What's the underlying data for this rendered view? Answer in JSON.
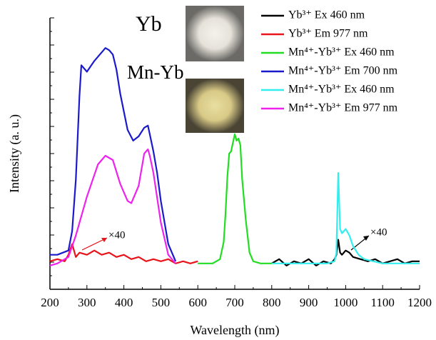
{
  "chart_data": {
    "type": "line",
    "xlabel": "Wavelength (nm)",
    "ylabel": "Intensity (a. u.)",
    "xlim": [
      200,
      1200
    ],
    "xticks": [
      200,
      300,
      400,
      500,
      600,
      700,
      800,
      900,
      1000,
      1100,
      1200
    ],
    "ylim": [
      -0.12,
      1.14
    ],
    "annotations": [
      "Yb",
      "Mn-Yb",
      "×40",
      "×40"
    ],
    "series": [
      {
        "name": "Yb³⁺ Ex 460 nm",
        "color": "#000000",
        "x": [
          800,
          820,
          840,
          860,
          880,
          900,
          920,
          940,
          960,
          970,
          975,
          980,
          985,
          990,
          1000,
          1010,
          1020,
          1040,
          1060,
          1080,
          1100,
          1120,
          1140,
          1160,
          1180,
          1200
        ],
        "values": [
          0.0,
          0.02,
          -0.01,
          0.01,
          0.0,
          0.02,
          -0.01,
          0.01,
          0.0,
          0.02,
          0.04,
          0.11,
          0.05,
          0.04,
          0.06,
          0.05,
          0.03,
          0.02,
          0.01,
          0.02,
          0.0,
          0.01,
          0.02,
          0.0,
          0.01,
          0.01
        ]
      },
      {
        "name": "Yb³⁺ Em 977 nm",
        "color": "#e8141a",
        "x": [
          200,
          220,
          240,
          250,
          260,
          270,
          280,
          300,
          320,
          340,
          360,
          380,
          400,
          420,
          440,
          460,
          480,
          500,
          520,
          540,
          560,
          580,
          600
        ],
        "values": [
          0.01,
          0.02,
          0.01,
          0.04,
          0.09,
          0.03,
          0.05,
          0.04,
          0.06,
          0.04,
          0.05,
          0.03,
          0.04,
          0.02,
          0.03,
          0.01,
          0.02,
          0.01,
          0.02,
          0.0,
          0.01,
          0.0,
          0.01
        ]
      },
      {
        "name": "Mn⁴⁺-Yb³⁺ Ex 460 nm",
        "color": "#22dd22",
        "x": [
          600,
          620,
          640,
          660,
          670,
          675,
          680,
          685,
          690,
          700,
          705,
          710,
          715,
          720,
          730,
          740,
          750,
          770,
          800
        ],
        "values": [
          0.0,
          0.0,
          0.0,
          0.02,
          0.1,
          0.23,
          0.4,
          0.51,
          0.52,
          0.6,
          0.57,
          0.58,
          0.55,
          0.39,
          0.2,
          0.05,
          0.01,
          0.0,
          0.0
        ]
      },
      {
        "name": "Mn⁴⁺-Yb³⁺ Em 700 nm",
        "color": "#1a1acc",
        "x": [
          200,
          220,
          250,
          260,
          270,
          280,
          285,
          300,
          320,
          340,
          350,
          360,
          370,
          380,
          390,
          410,
          425,
          440,
          455,
          465,
          470,
          480,
          490,
          500,
          520,
          540
        ],
        "values": [
          0.04,
          0.04,
          0.06,
          0.15,
          0.39,
          0.78,
          0.92,
          0.89,
          0.94,
          0.98,
          1.0,
          0.99,
          0.97,
          0.9,
          0.79,
          0.62,
          0.57,
          0.59,
          0.63,
          0.64,
          0.6,
          0.52,
          0.42,
          0.29,
          0.09,
          0.01
        ]
      },
      {
        "name": "Mn⁴⁺-Yb³⁺ Ex 460 nm",
        "color": "#33eeee",
        "x": [
          800,
          850,
          900,
          950,
          970,
          975,
          980,
          985,
          990,
          1000,
          1010,
          1020,
          1035,
          1050,
          1075,
          1100,
          1150,
          1200
        ],
        "values": [
          0.0,
          0.0,
          0.0,
          0.0,
          0.01,
          0.05,
          0.42,
          0.16,
          0.14,
          0.16,
          0.13,
          0.08,
          0.04,
          0.02,
          0.01,
          0.0,
          0.0,
          0.0
        ]
      },
      {
        "name": "Mn⁴⁺-Yb³⁺ Em 977 nm",
        "color": "#ee22ee",
        "x": [
          200,
          220,
          250,
          270,
          300,
          330,
          350,
          370,
          390,
          410,
          420,
          440,
          455,
          465,
          470,
          480,
          500,
          520,
          540
        ],
        "values": [
          -0.01,
          0.0,
          0.03,
          0.13,
          0.31,
          0.46,
          0.5,
          0.48,
          0.37,
          0.29,
          0.28,
          0.36,
          0.51,
          0.53,
          0.5,
          0.42,
          0.19,
          0.04,
          0.0
        ]
      }
    ]
  }
}
